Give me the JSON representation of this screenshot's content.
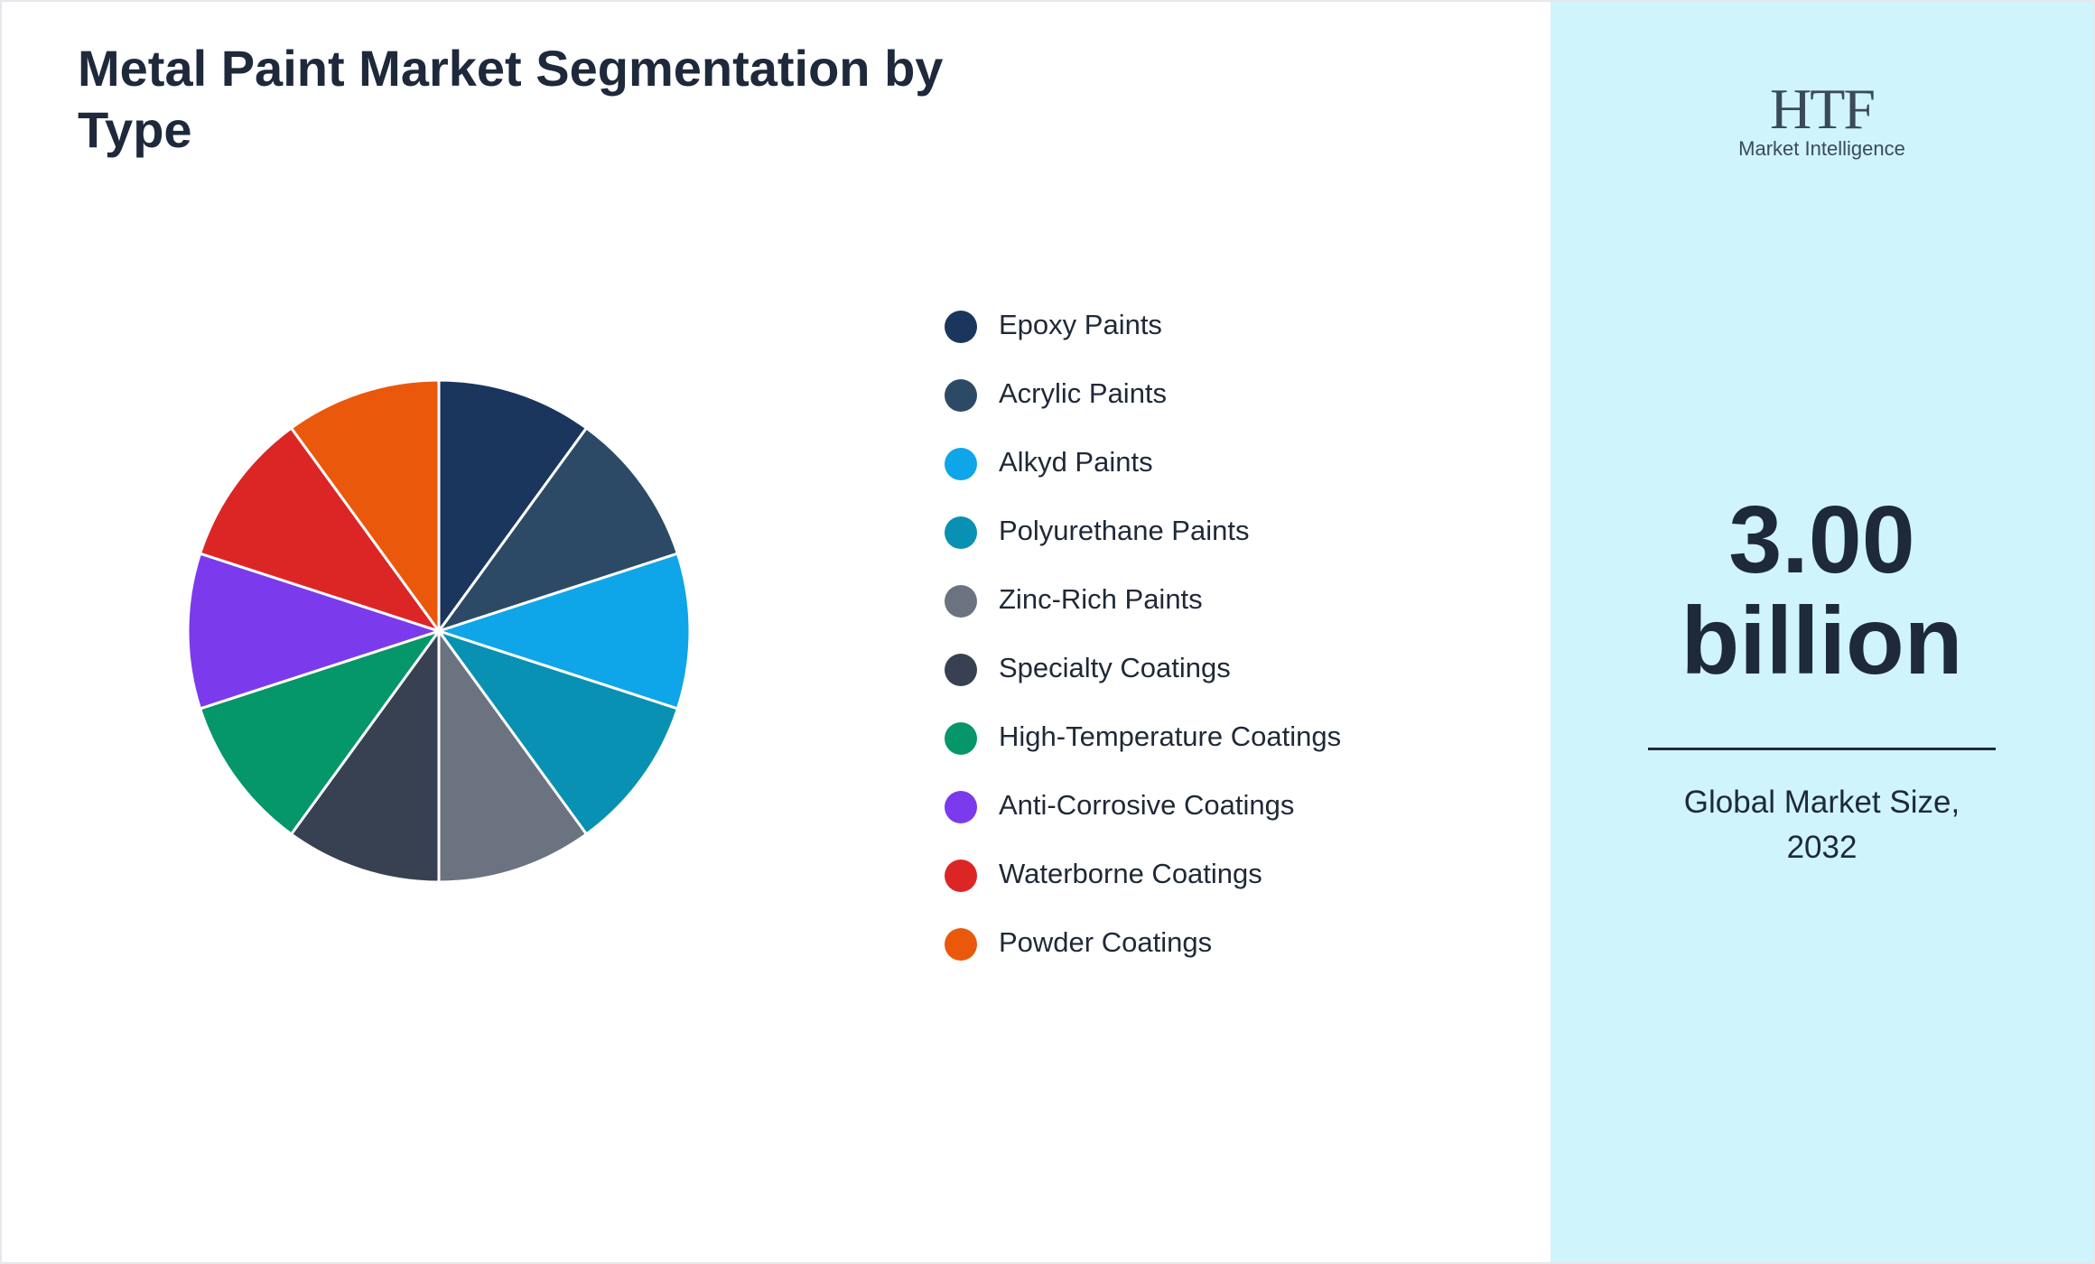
{
  "chart_data": {
    "type": "pie",
    "title": "Metal Paint Market Segmentation by Type",
    "categories": [
      "Epoxy Paints",
      "Acrylic Paints",
      "Alkyd Paints",
      "Polyurethane Paints",
      "Zinc-Rich Paints",
      "Specialty Coatings",
      "High-Temperature Coatings",
      "Anti-Corrosive Coatings",
      "Waterborne Coatings",
      "Powder Coatings"
    ],
    "values": [
      10,
      10,
      10,
      10,
      10,
      10,
      10,
      10,
      10,
      10
    ],
    "colors": [
      "#1b365d",
      "#2c4a66",
      "#0ea5e9",
      "#0891b2",
      "#6b7280",
      "#374151",
      "#059669",
      "#7c3aed",
      "#dc2626",
      "#ea580c"
    ]
  },
  "side_panel": {
    "logo": {
      "mark": "HTF",
      "text": "Market Intelligence"
    },
    "value": "3.00",
    "unit": "billion",
    "caption": "Global Market Size, 2032"
  }
}
